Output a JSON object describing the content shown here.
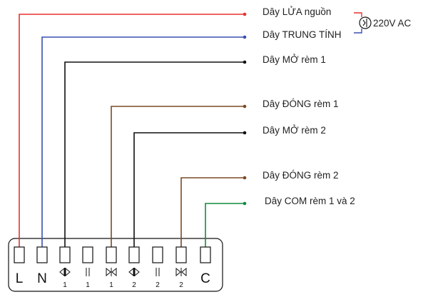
{
  "wires": [
    {
      "id": "L",
      "label": "Dây LỬA nguồn",
      "color": "#e8312f"
    },
    {
      "id": "N",
      "label": "Dây TRUNG TÍNH",
      "color": "#3b4fb0"
    },
    {
      "id": "M1",
      "label": "Dây MỞ rèm 1",
      "color": "#111111"
    },
    {
      "id": "D1",
      "label": "Dây ĐÓNG rèm 1",
      "color": "#7a4a26"
    },
    {
      "id": "M2",
      "label": "Dây MỞ rèm 2",
      "color": "#111111"
    },
    {
      "id": "D2",
      "label": "Dây ĐÓNG rèm 2",
      "color": "#7a4a26"
    },
    {
      "id": "C",
      "label": "Dây COM rèm 1 và 2",
      "color": "#138a3e"
    }
  ],
  "source": {
    "label": "220V AC",
    "icon": "ac-plug-icon"
  },
  "terminal_block": {
    "terminals": [
      {
        "big": "L",
        "symbol": null,
        "number": ""
      },
      {
        "big": "N",
        "symbol": null,
        "number": ""
      },
      {
        "big": "",
        "symbol": "open",
        "number": "1"
      },
      {
        "big": "",
        "symbol": "pause",
        "number": "1"
      },
      {
        "big": "",
        "symbol": "close",
        "number": "1"
      },
      {
        "big": "",
        "symbol": "open",
        "number": "2"
      },
      {
        "big": "",
        "symbol": "pause",
        "number": "2"
      },
      {
        "big": "",
        "symbol": "close",
        "number": "2"
      },
      {
        "big": "C",
        "symbol": null,
        "number": ""
      }
    ]
  }
}
